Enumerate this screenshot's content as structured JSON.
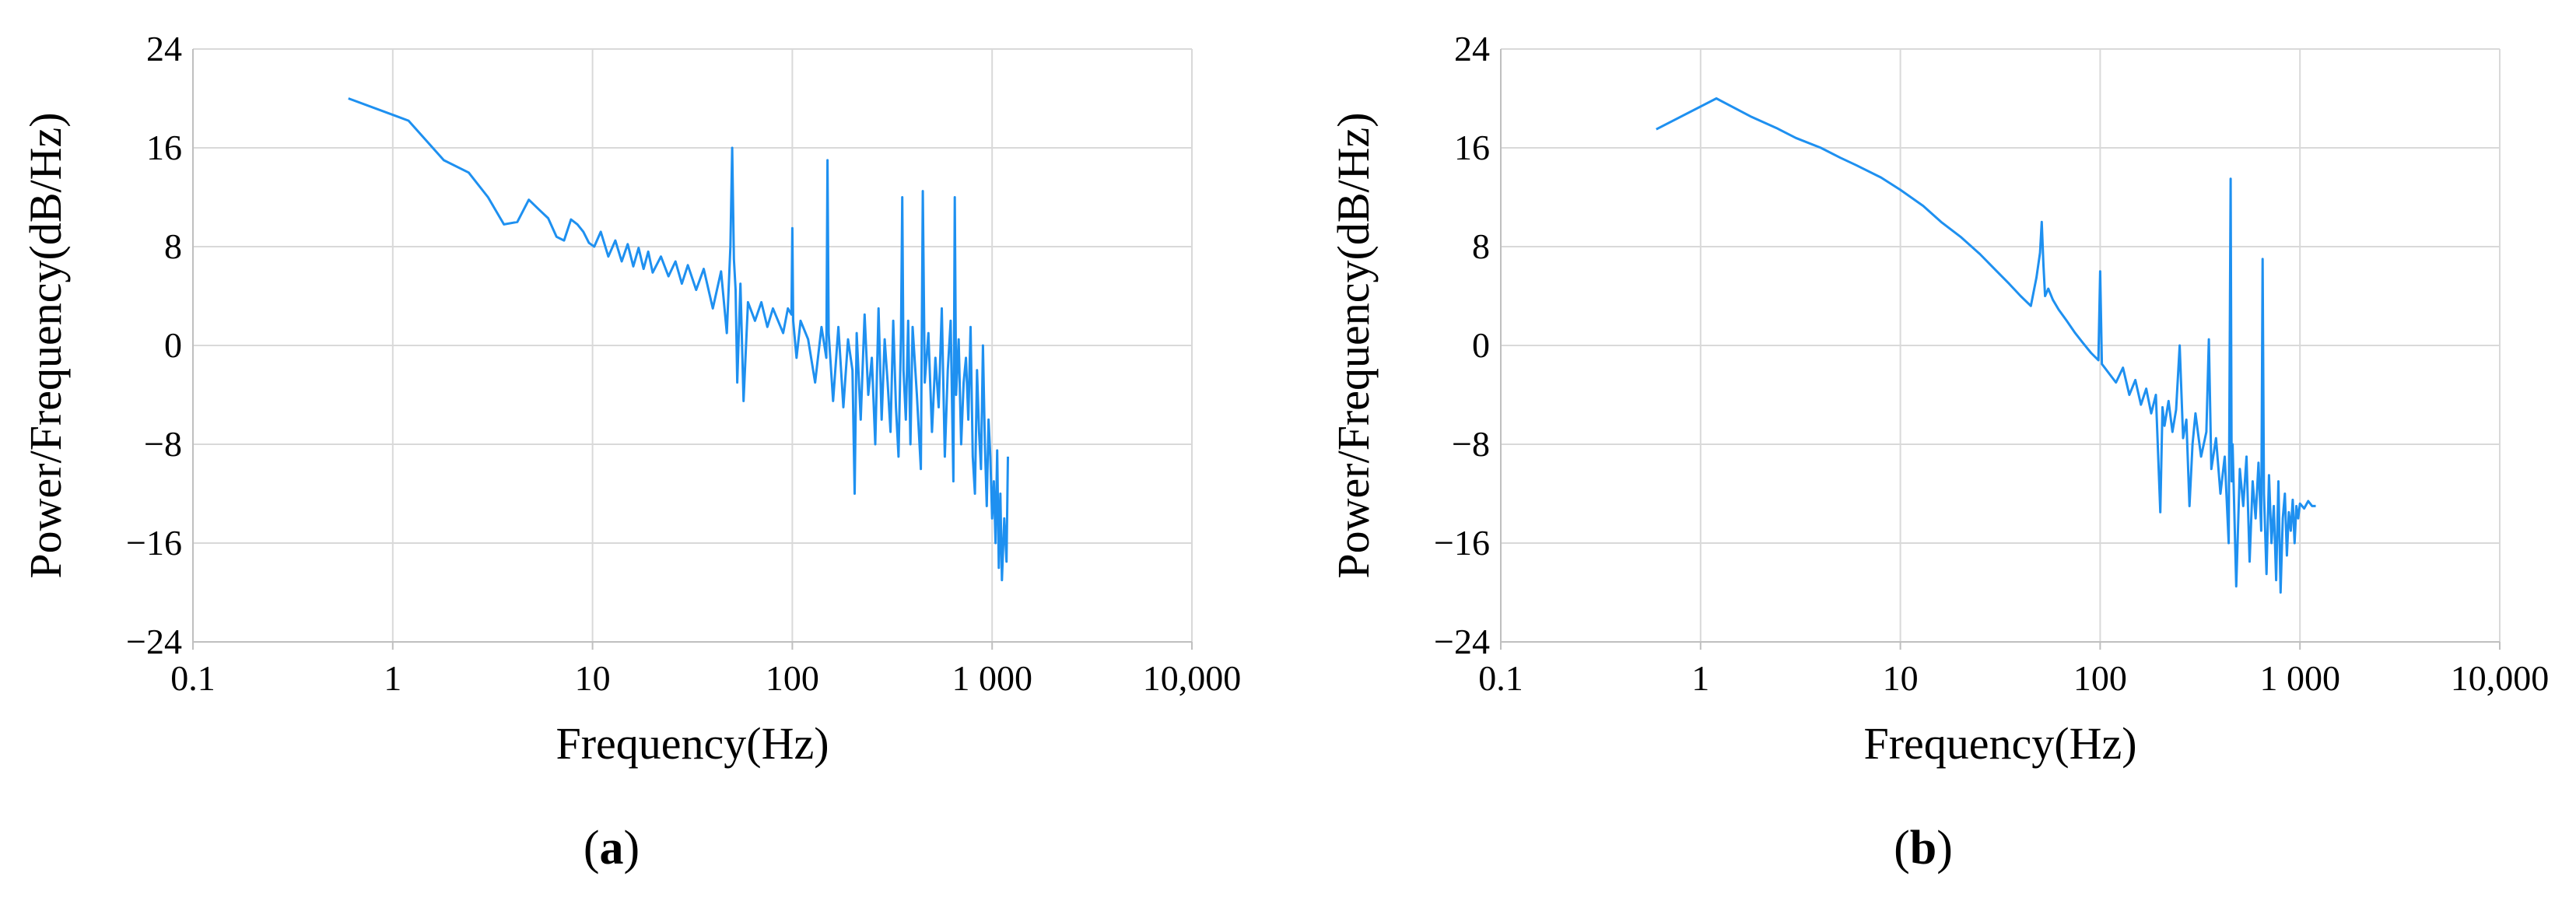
{
  "colors": {
    "line": "#1e90f0",
    "grid": "#d9d9d9",
    "axis": "#bfbfbf",
    "text": "#000000"
  },
  "chart_data": [
    {
      "type": "line",
      "panel_label": "a",
      "xlabel": "Frequency(Hz)",
      "ylabel": "Power/Frequency(dB/Hz)",
      "x_scale": "log",
      "xlim": [
        0.1,
        10000
      ],
      "ylim": [
        -24,
        24
      ],
      "x_ticks": [
        0.1,
        1,
        10,
        100,
        1000,
        10000
      ],
      "x_tick_labels": [
        "0.1",
        "1",
        "10",
        "100",
        "1 000",
        "10,000"
      ],
      "y_ticks": [
        24,
        16,
        8,
        0,
        -8,
        -16,
        -24
      ],
      "y_tick_labels": [
        "24",
        "16",
        "8",
        "0",
        "−8",
        "−16",
        "−24"
      ],
      "grid": true,
      "series": [
        {
          "x": [
            0.6,
            1.2,
            1.8,
            2.4,
            3.0,
            3.6,
            4.2,
            4.8,
            5.4,
            6.0,
            6.6,
            7.2,
            7.8,
            8.4,
            9.0,
            9.6,
            10.2,
            11,
            12,
            13,
            14,
            15,
            16,
            17,
            18,
            19,
            20,
            22,
            24,
            26,
            28,
            30,
            33,
            36,
            40,
            44,
            47,
            49,
            50,
            51,
            52,
            53,
            55,
            57,
            60,
            65,
            70,
            75,
            80,
            90,
            95,
            99,
            100,
            101,
            105,
            110,
            120,
            130,
            140,
            148,
            150,
            152,
            160,
            170,
            180,
            190,
            200,
            205,
            210,
            220,
            230,
            240,
            250,
            260,
            270,
            280,
            290,
            300,
            310,
            320,
            330,
            340,
            350,
            355,
            360,
            370,
            380,
            390,
            400,
            420,
            440,
            450,
            460,
            480,
            500,
            520,
            540,
            560,
            580,
            600,
            620,
            640,
            650,
            660,
            680,
            700,
            720,
            740,
            760,
            780,
            800,
            820,
            840,
            860,
            880,
            900,
            920,
            940,
            960,
            980,
            1000,
            1020,
            1040,
            1060,
            1080,
            1100,
            1120,
            1150,
            1180,
            1200
          ],
          "y": [
            20.0,
            18.2,
            15.0,
            14.0,
            12.0,
            9.8,
            10.0,
            11.8,
            11.0,
            10.3,
            8.8,
            8.5,
            10.2,
            9.8,
            9.2,
            8.3,
            8.0,
            9.2,
            7.2,
            8.5,
            6.8,
            8.2,
            6.4,
            7.9,
            6.2,
            7.6,
            5.9,
            7.2,
            5.6,
            6.8,
            5.0,
            6.5,
            4.5,
            6.2,
            3.0,
            6.0,
            1.0,
            8.0,
            16.0,
            7.0,
            4.5,
            -3.0,
            5.0,
            -4.5,
            3.5,
            2.0,
            3.5,
            1.5,
            3.0,
            1.0,
            3.0,
            2.5,
            9.5,
            2.0,
            -1.0,
            2.0,
            0.5,
            -3.0,
            1.5,
            -1.0,
            15.0,
            1.0,
            -4.5,
            1.5,
            -5.0,
            0.5,
            -2.0,
            -12.0,
            1.0,
            -6.0,
            2.5,
            -4.0,
            -1.0,
            -8.0,
            3.0,
            -6.0,
            0.5,
            -3.0,
            -7.0,
            2.0,
            -5.0,
            -9.0,
            1.0,
            12.0,
            -2.0,
            -6.0,
            2.0,
            -8.0,
            1.5,
            -4.0,
            -10.0,
            12.5,
            -3.0,
            1.0,
            -7.0,
            -1.0,
            -5.0,
            3.0,
            -9.0,
            -2.0,
            2.0,
            -11.0,
            12.0,
            -4.0,
            0.5,
            -8.0,
            -3.0,
            -1.0,
            -6.0,
            1.5,
            -9.0,
            -12.0,
            -2.0,
            -7.0,
            -10.0,
            0.0,
            -8.0,
            -13.0,
            -6.0,
            -9.0,
            -14.0,
            -11.0,
            -16.0,
            -8.5,
            -18.0,
            -12.0,
            -19.0,
            -14.0,
            -17.5,
            -9.0
          ]
        }
      ]
    },
    {
      "type": "line",
      "panel_label": "b",
      "xlabel": "Frequency(Hz)",
      "ylabel": "Power/Frequency(dB/Hz)",
      "x_scale": "log",
      "xlim": [
        0.1,
        10000
      ],
      "ylim": [
        -24,
        24
      ],
      "x_ticks": [
        0.1,
        1,
        10,
        100,
        1000,
        10000
      ],
      "x_tick_labels": [
        "0.1",
        "1",
        "10",
        "100",
        "1 000",
        "10,000"
      ],
      "y_ticks": [
        24,
        16,
        8,
        0,
        -8,
        -16,
        -24
      ],
      "y_tick_labels": [
        "24",
        "16",
        "8",
        "0",
        "−8",
        "−16",
        "−24"
      ],
      "grid": true,
      "series": [
        {
          "x": [
            0.6,
            1.2,
            1.8,
            2.4,
            3.0,
            4.0,
            5.0,
            6.0,
            8.0,
            10,
            13,
            16,
            20,
            25,
            30,
            35,
            40,
            45,
            48,
            50,
            51,
            52,
            53,
            55,
            58,
            62,
            68,
            75,
            82,
            90,
            98,
            100,
            102,
            110,
            120,
            130,
            140,
            150,
            160,
            170,
            180,
            190,
            200,
            205,
            210,
            220,
            230,
            240,
            250,
            260,
            270,
            280,
            290,
            300,
            320,
            340,
            350,
            360,
            380,
            400,
            420,
            440,
            450,
            455,
            460,
            480,
            500,
            520,
            540,
            560,
            580,
            600,
            620,
            640,
            650,
            660,
            680,
            700,
            720,
            740,
            760,
            780,
            800,
            820,
            840,
            860,
            880,
            900,
            920,
            940,
            960,
            980,
            1000,
            1050,
            1100,
            1150,
            1200
          ],
          "y": [
            17.5,
            20.0,
            18.5,
            17.6,
            16.8,
            16.0,
            15.2,
            14.6,
            13.6,
            12.6,
            11.3,
            10.0,
            8.8,
            7.4,
            6.1,
            5.0,
            4.0,
            3.2,
            5.5,
            7.5,
            10.0,
            6.5,
            4.0,
            4.6,
            3.7,
            2.9,
            2.0,
            1.0,
            0.2,
            -0.6,
            -1.2,
            6.0,
            -1.5,
            -2.2,
            -3.0,
            -1.8,
            -4.0,
            -2.8,
            -4.8,
            -3.5,
            -5.5,
            -4.0,
            -13.5,
            -5.0,
            -6.5,
            -4.5,
            -7.0,
            -5.2,
            0.0,
            -7.5,
            -6.0,
            -13.0,
            -8.0,
            -5.5,
            -9.0,
            -7.0,
            0.5,
            -10.0,
            -7.5,
            -12.0,
            -9.0,
            -16.0,
            13.5,
            -11.0,
            -8.0,
            -19.5,
            -10.0,
            -13.0,
            -9.0,
            -17.5,
            -11.0,
            -14.0,
            -9.5,
            -15.0,
            7.0,
            -12.0,
            -18.5,
            -10.5,
            -16.0,
            -13.0,
            -19.0,
            -11.0,
            -20.0,
            -14.0,
            -12.0,
            -17.0,
            -13.5,
            -15.0,
            -12.5,
            -16.0,
            -13.0,
            -14.0,
            -12.8,
            -13.2,
            -12.6,
            -13.0,
            -13.0
          ]
        }
      ]
    }
  ]
}
